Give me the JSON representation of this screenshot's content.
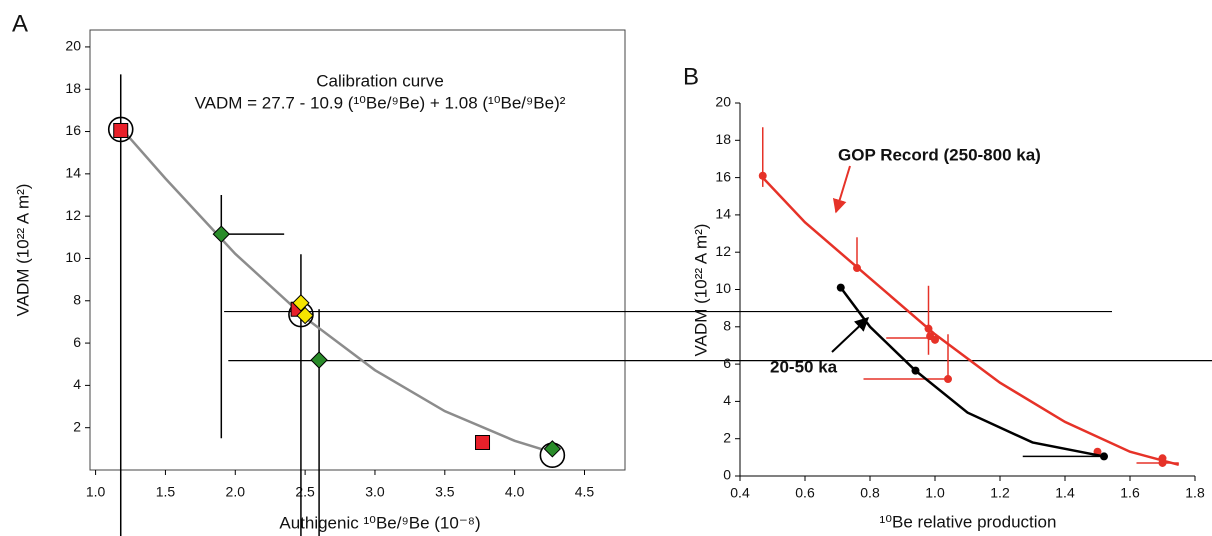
{
  "chart_data": [
    {
      "type": "scatter",
      "panel_label": "A",
      "title": "Calibration curve",
      "subtitle": "VADM = 27.7 - 10.9 (¹⁰Be/⁹Be) + 1.08 (¹⁰Be/⁹Be)²",
      "x_label": "Authigenic ¹⁰Be/⁹Be (10⁻⁸)",
      "y_label": "VADM (10²² A m²)",
      "xlim": [
        0.96,
        4.79
      ],
      "ylim": [
        0,
        20.8
      ],
      "xticks": [
        {
          "value": 1,
          "label": "1.0"
        },
        1.5,
        {
          "value": 2,
          "label": "2.0"
        },
        2.5,
        {
          "value": 3,
          "label": "3.0"
        },
        3.5,
        {
          "value": 4,
          "label": "4.0"
        },
        4.5
      ],
      "yticks": [
        2,
        4,
        6,
        8,
        10,
        12,
        14,
        16,
        18,
        20
      ],
      "series": [
        {
          "kind": "line",
          "color": "#8c8c8c",
          "x": [
            1.18,
            1.5,
            2,
            2.5,
            3,
            3.5,
            4,
            4.2
          ],
          "y": [
            16.18,
            13.78,
            10.22,
            7.2,
            4.72,
            2.78,
            1.38,
            0.97
          ]
        },
        {
          "marker": "circle",
          "color": "#000000",
          "x": [
            1.18,
            2.47,
            4.27
          ],
          "y": [
            16.1,
            7.35,
            0.7
          ]
        },
        {
          "marker": "square",
          "color": "#e8202a",
          "x": [
            1.18,
            2.45,
            3.77
          ],
          "y": [
            16.05,
            7.6,
            1.3
          ]
        },
        {
          "marker": "diamond",
          "color": "#2a8c2a",
          "x": [
            1.9,
            2.6,
            4.27
          ],
          "y": [
            11.15,
            5.2,
            1.0
          ]
        },
        {
          "marker": "diamond",
          "color": "#f5e400",
          "x": [
            2.47,
            2.5
          ],
          "y": [
            7.9,
            7.3
          ]
        }
      ],
      "error_bars": [
        {
          "color": "#000000",
          "x": 1.9,
          "y_low": 1.5,
          "y_high": 13
        },
        {
          "color": "#000000",
          "y": 11.15,
          "x_low": 1.9,
          "x_high": 2.35
        },
        {
          "color": "#000000",
          "x": 3.77,
          "y_low": 1.0,
          "y_high": 1.6
        },
        {
          "color": "#000000",
          "x": 4.27,
          "y_low": 0.8,
          "y_high": 1.2
        }
      ],
      "vlines": [
        {
          "x": 1.18,
          "y": 18.7
        },
        {
          "x": 2.47,
          "y": 10.2
        },
        {
          "x": 2.6,
          "y": 7.6
        }
      ],
      "hlines": [
        {
          "y": 7.49,
          "x": 1.92
        },
        {
          "y": 5.17,
          "x": 1.95
        }
      ]
    },
    {
      "type": "scatter",
      "panel_label": "B",
      "x_label": "¹⁰Be relative production",
      "y_label": "VADM (10²² A m²)",
      "xlim": [
        0.4,
        1.8
      ],
      "ylim": [
        0,
        20
      ],
      "xticks": [
        0.4,
        0.6,
        0.8,
        {
          "value": 1,
          "label": "1.0"
        },
        1.2,
        1.4,
        1.6,
        1.8
      ],
      "yticks": [
        0,
        2,
        4,
        6,
        8,
        10,
        12,
        14,
        16,
        18,
        20
      ],
      "series": [
        {
          "kind": "line",
          "name": "GOP Record (250-800 ka)",
          "color": "#e63228",
          "x": [
            0.47,
            0.6,
            0.8,
            1.0,
            1.2,
            1.4,
            1.6,
            1.75
          ],
          "y": [
            16.0,
            13.6,
            10.6,
            7.6,
            5.0,
            2.9,
            1.3,
            0.6
          ]
        },
        {
          "marker": "dot",
          "color": "#e63228",
          "x": [
            0.47,
            0.76,
            0.98,
            0.985,
            1.0,
            1.04,
            1.5,
            1.7,
            1.7
          ],
          "y": [
            16.1,
            11.15,
            7.9,
            7.5,
            7.3,
            5.2,
            1.3,
            0.95,
            0.7
          ]
        },
        {
          "kind": "line",
          "name": "20-50 ka",
          "color": "#000000",
          "x": [
            0.71,
            0.8,
            0.94,
            1.1,
            1.3,
            1.52
          ],
          "y": [
            10.1,
            8.0,
            5.65,
            3.4,
            1.8,
            1.05
          ]
        },
        {
          "marker": "dot",
          "color": "#000000",
          "x": [
            0.71,
            0.94,
            1.52
          ],
          "y": [
            10.1,
            5.65,
            1.05
          ]
        }
      ],
      "error_bars": [
        {
          "color": "#e63228",
          "x": 0.47,
          "y_low": 15.5,
          "y_high": 18.7
        },
        {
          "color": "#e63228",
          "x": 0.76,
          "y_low": 11.15,
          "y_high": 12.8
        },
        {
          "color": "#e63228",
          "x": 0.98,
          "y_low": 6.5,
          "y_high": 10.2
        },
        {
          "color": "#e63228",
          "x": 1.04,
          "y_low": 5.2,
          "y_high": 7.6
        },
        {
          "color": "#e63228",
          "y": 7.4,
          "x_low": 0.85,
          "x_high": 1.0
        },
        {
          "color": "#e63228",
          "y": 5.2,
          "x_low": 0.78,
          "x_high": 1.04
        },
        {
          "color": "#e63228",
          "y": 0.7,
          "x_low": 1.62,
          "x_high": 1.75
        },
        {
          "color": "#000000",
          "y": 1.05,
          "x_low": 1.27,
          "x_high": 1.52
        }
      ]
    }
  ]
}
